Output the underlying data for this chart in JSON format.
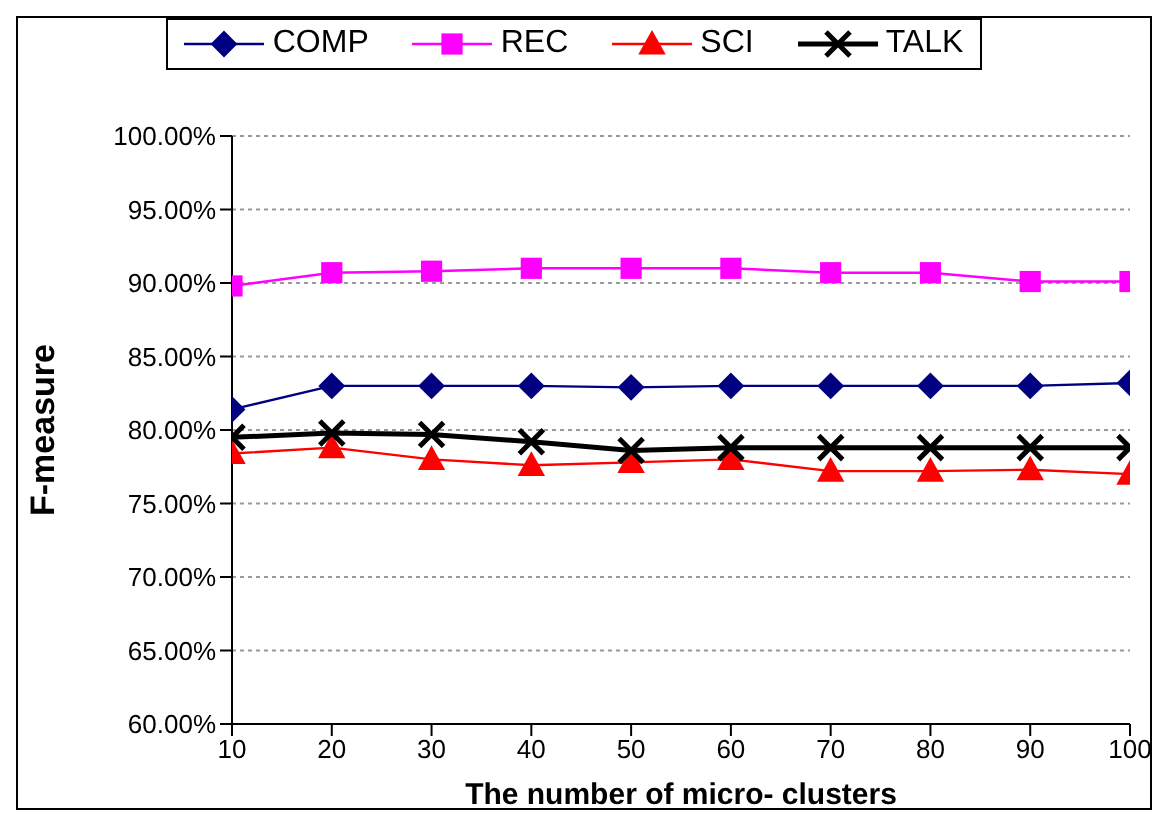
{
  "chart_data": {
    "type": "line",
    "xlabel": "The number of micro- clusters",
    "ylabel": "F-measure",
    "x": [
      10,
      20,
      30,
      40,
      50,
      60,
      70,
      80,
      90,
      100
    ],
    "xlim": [
      10,
      100
    ],
    "xticks": [
      10,
      20,
      30,
      40,
      50,
      60,
      70,
      80,
      90,
      100
    ],
    "ylim": [
      60,
      100
    ],
    "yticks": [
      {
        "value": 60,
        "label": "60.00%"
      },
      {
        "value": 65,
        "label": "65.00%"
      },
      {
        "value": 70,
        "label": "70.00%"
      },
      {
        "value": 75,
        "label": "75.00%"
      },
      {
        "value": 80,
        "label": "80.00%"
      },
      {
        "value": 85,
        "label": "85.00%"
      },
      {
        "value": 90,
        "label": "90.00%"
      },
      {
        "value": 95,
        "label": "95.00%"
      },
      {
        "value": 100,
        "label": "100.00%"
      }
    ],
    "grid": "y",
    "legend": "top",
    "series": [
      {
        "name": "COMP",
        "color": "#000080",
        "marker": "diamond",
        "values": [
          81.4,
          83.0,
          83.0,
          83.0,
          82.9,
          83.0,
          83.0,
          83.0,
          83.0,
          83.2
        ]
      },
      {
        "name": "REC",
        "color": "#ff00ff",
        "marker": "square",
        "values": [
          89.8,
          90.7,
          90.8,
          91.0,
          91.0,
          91.0,
          90.7,
          90.7,
          90.1,
          90.1
        ]
      },
      {
        "name": "SCI",
        "color": "#ff0000",
        "marker": "triangle",
        "values": [
          78.4,
          78.8,
          78.0,
          77.6,
          77.8,
          78.0,
          77.2,
          77.2,
          77.3,
          77.0
        ]
      },
      {
        "name": "TALK",
        "color": "#000000",
        "marker": "cross",
        "values": [
          79.5,
          79.8,
          79.7,
          79.2,
          78.6,
          78.8,
          78.8,
          78.8,
          78.8,
          78.8
        ]
      }
    ]
  }
}
